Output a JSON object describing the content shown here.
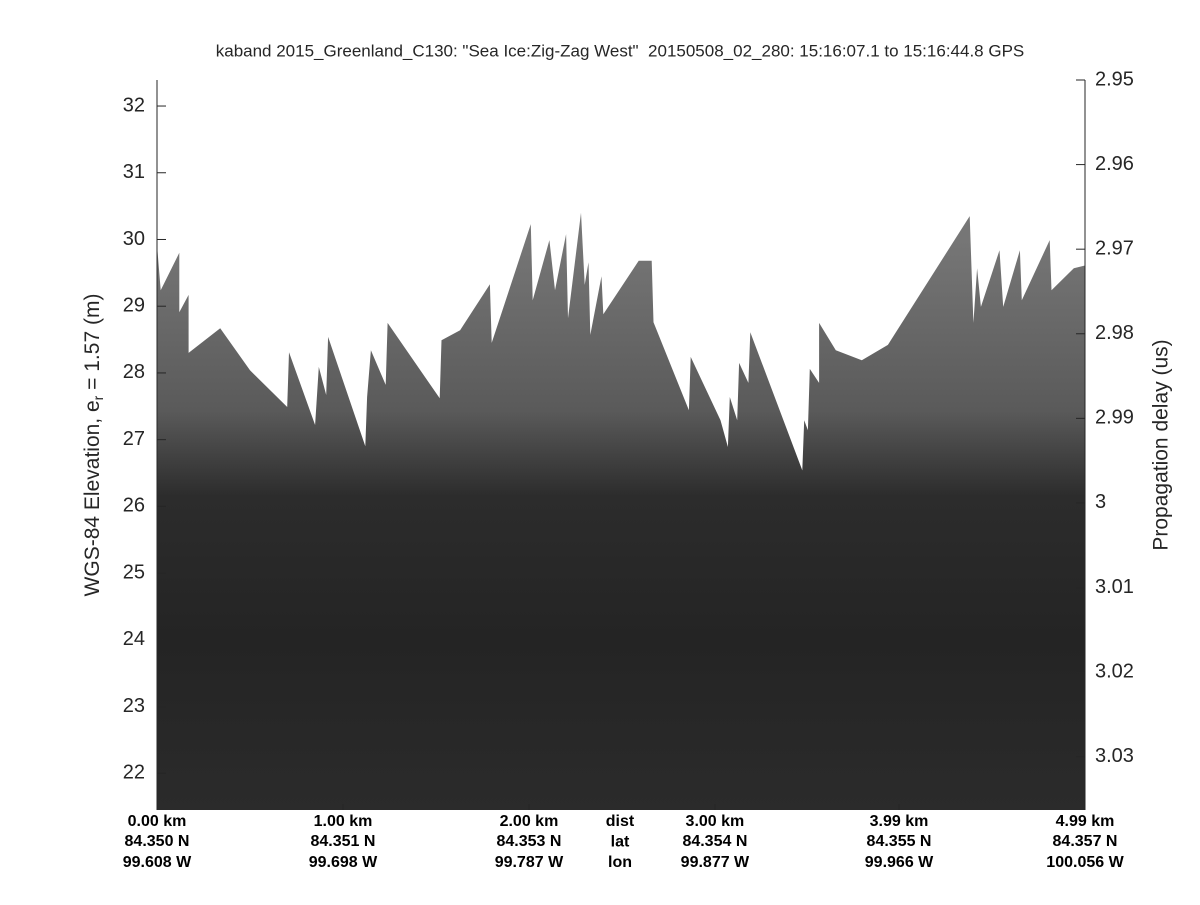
{
  "chart_data": {
    "type": "echogram",
    "title": "kaband 2015_Greenland_C130: \"Sea Ice:Zig-Zag West\"  20150508_02_280: 15:16:07.1 to 15:16:44.8 GPS",
    "y_label": {
      "prefix": "WGS-84 Elevation, e",
      "subscript": "r",
      "suffix": " = 1.57 (m)"
    },
    "y2_label": "Propagation delay (us)",
    "xlim": [
      0,
      4.99
    ],
    "xticks": [
      {
        "value": 0,
        "label": "0.00 km"
      },
      {
        "value": 1,
        "label": "1.00 km"
      },
      {
        "value": 2,
        "label": "2.00 km"
      },
      {
        "value": 3,
        "label": "3.00 km"
      },
      {
        "value": 3.99,
        "label": "3.99 km"
      },
      {
        "value": 4.99,
        "label": "4.99 km"
      }
    ],
    "lat_labels": [
      "84.350 N",
      "84.351 N",
      "84.353 N",
      "84.354 N",
      "84.355 N",
      "84.357 N"
    ],
    "lon_labels": [
      "99.608 W",
      "99.698 W",
      "99.787 W",
      "99.877 W",
      "99.966 W",
      "100.056 W"
    ],
    "row_labels": [
      "dist",
      "lat",
      "lon"
    ],
    "ylim": [
      21.45,
      32.39
    ],
    "yticks": [
      22,
      23,
      24,
      25,
      26,
      27,
      28,
      29,
      30,
      31,
      32
    ],
    "y2lim": [
      3.0363,
      2.95
    ],
    "y2ticks": [
      2.95,
      2.96,
      2.97,
      2.98,
      2.99,
      3,
      3.01,
      3.02,
      3.03
    ],
    "surface": {
      "x": [
        0,
        0.02,
        0.12,
        0.12,
        0.17,
        0.17,
        0.34,
        0.5,
        0.7,
        0.71,
        0.85,
        0.87,
        0.91,
        0.92,
        1.12,
        1.13,
        1.15,
        1.23,
        1.24,
        1.52,
        1.53,
        1.63,
        1.79,
        1.8,
        2.01,
        2.02,
        2.11,
        2.14,
        2.2,
        2.21,
        2.28,
        2.3,
        2.32,
        2.33,
        2.39,
        2.4,
        2.59,
        2.66,
        2.67,
        2.86,
        2.87,
        3.03,
        3.07,
        3.08,
        3.12,
        3.13,
        3.18,
        3.19,
        3.47,
        3.48,
        3.5,
        3.51,
        3.56,
        3.56,
        3.65,
        3.79,
        3.93,
        4.37,
        4.39,
        4.41,
        4.43,
        4.53,
        4.55,
        4.64,
        4.65,
        4.8,
        4.81,
        4.93,
        4.99
      ],
      "values": [
        29.92,
        29.24,
        29.8,
        28.91,
        29.17,
        28.3,
        28.67,
        28.04,
        27.49,
        28.31,
        27.22,
        28.09,
        27.67,
        28.54,
        26.9,
        27.64,
        28.34,
        27.82,
        28.75,
        27.62,
        28.49,
        28.64,
        29.33,
        28.45,
        30.23,
        29.09,
        29.99,
        29.24,
        30.08,
        28.82,
        30.4,
        29.32,
        29.66,
        28.57,
        29.45,
        28.88,
        29.68,
        29.68,
        28.76,
        27.44,
        28.24,
        27.29,
        26.89,
        27.64,
        27.29,
        28.15,
        27.85,
        28.61,
        26.54,
        27.29,
        27.14,
        28.06,
        27.85,
        28.75,
        28.34,
        28.19,
        28.42,
        30.35,
        28.75,
        29.57,
        28.99,
        29.84,
        28.99,
        29.84,
        29.09,
        29.99,
        29.24,
        29.57,
        29.61
      ]
    }
  }
}
